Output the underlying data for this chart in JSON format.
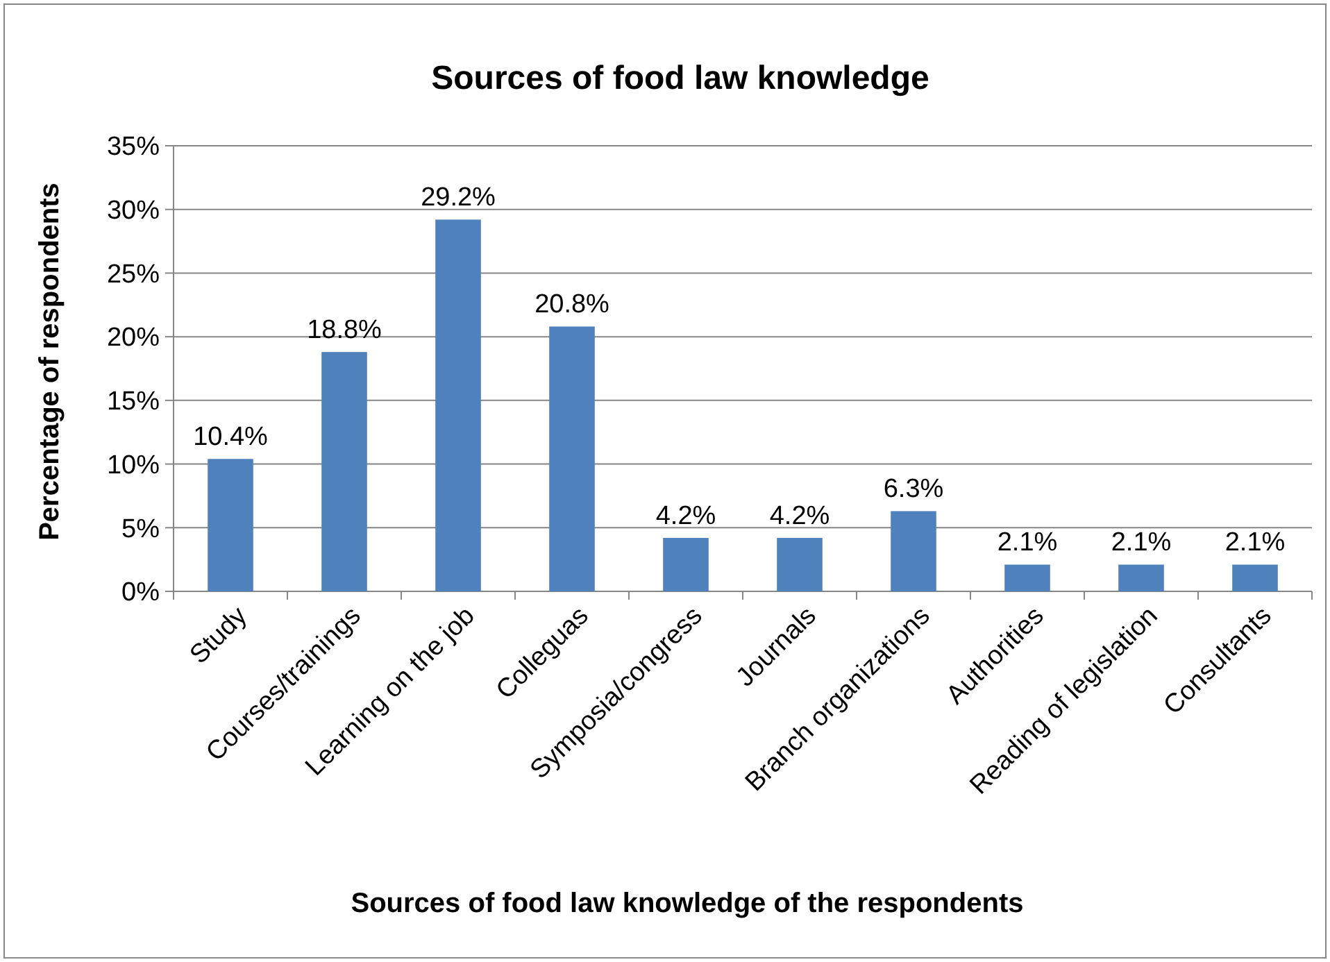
{
  "chart_data": {
    "type": "bar",
    "title": "Sources of food law knowledge",
    "xlabel": "Sources of food law knowledge of the respondents",
    "ylabel": "Percentage of respondents",
    "categories": [
      "Study",
      "Courses/trainings",
      "Learning on the job",
      "Colleguas",
      "Symposia/congress",
      "Journals",
      "Branch organizations",
      "Authorities",
      "Reading of legislation",
      "Consultants"
    ],
    "values": [
      10.4,
      18.8,
      29.2,
      20.8,
      4.2,
      4.2,
      6.3,
      2.1,
      2.1,
      2.1
    ],
    "value_labels": [
      "10.4%",
      "18.8%",
      "29.2%",
      "20.8%",
      "4.2%",
      "4.2%",
      "6.3%",
      "2.1%",
      "2.1%",
      "2.1%"
    ],
    "color": "#4f81bd",
    "ylim": [
      0,
      35
    ],
    "yticks": [
      {
        "value": 0,
        "label": "0%"
      },
      {
        "value": 5,
        "label": "5%"
      },
      {
        "value": 10,
        "label": "10%"
      },
      {
        "value": 15,
        "label": "15%"
      },
      {
        "value": 20,
        "label": "20%"
      },
      {
        "value": 25,
        "label": "25%"
      },
      {
        "value": 30,
        "label": "30%"
      },
      {
        "value": 35,
        "label": "35%"
      }
    ],
    "grid": "y"
  }
}
